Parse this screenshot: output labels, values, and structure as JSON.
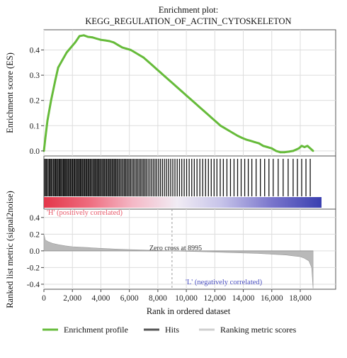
{
  "chart_data": {
    "type": "line",
    "title": "Enrichment plot:",
    "subtitle": "KEGG_REGULATION_OF_ACTIN_CYTOSKELETON",
    "xlabel": "Rank in ordered dataset",
    "xlim": [
      0,
      19000
    ],
    "x_ticks": [
      0,
      2000,
      4000,
      6000,
      8000,
      10000,
      12000,
      14000,
      16000,
      18000
    ],
    "x_tick_labels": [
      "0",
      "2,000",
      "4,000",
      "6,000",
      "8,000",
      "10,000",
      "12,000",
      "14,000",
      "16,000",
      "18,000"
    ],
    "grid": true,
    "panels": {
      "enrichment": {
        "ylabel": "Enrichment score (ES)",
        "ylim": [
          -0.02,
          0.48
        ],
        "y_ticks": [
          0.0,
          0.1,
          0.2,
          0.3,
          0.4
        ],
        "y_tick_labels": [
          "0.0",
          "0.1",
          "0.2",
          "0.3",
          "0.4"
        ],
        "series": [
          {
            "name": "Enrichment profile",
            "color": "#66bb3a",
            "x": [
              0,
              100,
              250,
              500,
              800,
              1000,
              1300,
              1600,
              1900,
              2200,
              2500,
              2800,
              3100,
              3400,
              3700,
              4000,
              4300,
              4600,
              4900,
              5200,
              5500,
              5800,
              6100,
              6400,
              6700,
              7000,
              7300,
              7600,
              7900,
              8200,
              8500,
              8800,
              9100,
              9400,
              9700,
              10000,
              10300,
              10600,
              10900,
              11200,
              11500,
              11800,
              12100,
              12400,
              12700,
              13000,
              13300,
              13600,
              13900,
              14200,
              14500,
              14800,
              15100,
              15400,
              15700,
              16000,
              16300,
              16600,
              16900,
              17200,
              17500,
              17700,
              17900,
              18100,
              18300,
              18500,
              18700,
              18900
            ],
            "y": [
              0.0,
              0.05,
              0.12,
              0.2,
              0.28,
              0.33,
              0.36,
              0.39,
              0.41,
              0.43,
              0.455,
              0.458,
              0.452,
              0.45,
              0.445,
              0.44,
              0.438,
              0.435,
              0.43,
              0.42,
              0.41,
              0.405,
              0.4,
              0.39,
              0.38,
              0.37,
              0.355,
              0.34,
              0.325,
              0.31,
              0.295,
              0.28,
              0.265,
              0.25,
              0.235,
              0.22,
              0.205,
              0.19,
              0.175,
              0.16,
              0.145,
              0.13,
              0.115,
              0.1,
              0.09,
              0.08,
              0.07,
              0.06,
              0.052,
              0.045,
              0.04,
              0.035,
              0.03,
              0.02,
              0.015,
              0.01,
              0.0,
              -0.005,
              -0.005,
              -0.003,
              0.0,
              0.005,
              0.01,
              0.02,
              0.015,
              0.02,
              0.01,
              0.0
            ]
          }
        ]
      },
      "hits": {
        "name": "Hits",
        "color": "#111111",
        "positions": [
          60,
          140,
          210,
          300,
          380,
          450,
          520,
          600,
          680,
          760,
          830,
          900,
          980,
          1060,
          1130,
          1200,
          1280,
          1360,
          1430,
          1500,
          1570,
          1650,
          1720,
          1800,
          1870,
          1950,
          2020,
          2100,
          2170,
          2250,
          2330,
          2400,
          2480,
          2550,
          2620,
          2700,
          2780,
          2850,
          2930,
          3000,
          3080,
          3150,
          3230,
          3300,
          3380,
          3460,
          3540,
          3610,
          3690,
          3770,
          3840,
          3920,
          4000,
          4080,
          4160,
          4240,
          4320,
          4400,
          4480,
          4560,
          4640,
          4720,
          4800,
          4880,
          4960,
          5040,
          5120,
          5200,
          5290,
          5380,
          5470,
          5560,
          5650,
          5740,
          5830,
          5920,
          6010,
          6100,
          6200,
          6300,
          6400,
          6500,
          6600,
          6700,
          6800,
          6900,
          7000,
          7100,
          7200,
          7320,
          7440,
          7560,
          7680,
          7800,
          7920,
          8050,
          8180,
          8320,
          8460,
          8600,
          8750,
          8900,
          9050,
          9200,
          9360,
          9520,
          9680,
          9850,
          10020,
          10200,
          10380,
          10560,
          10750,
          10950,
          11150,
          11350,
          11550,
          11750,
          11950,
          12150,
          12380,
          12600,
          12850,
          13100,
          13350,
          13600,
          13850,
          14100,
          14350,
          14600,
          14900,
          15200,
          15500,
          15800,
          16100,
          16450,
          16800,
          17150,
          17500,
          17800,
          18100,
          18400,
          18700
        ]
      },
      "ranked_metric": {
        "ylabel": "Ranked list metric (signal2noise)",
        "ylim": [
          -0.46,
          0.5
        ],
        "y_ticks": [
          -0.4,
          -0.2,
          0.0,
          0.2,
          0.4
        ],
        "y_tick_labels": [
          "-0.4",
          "-0.2",
          "0.0",
          "0.2",
          "0.4"
        ],
        "name": "Ranking metric scores",
        "color": "#b9b9b9",
        "x": [
          0,
          100,
          300,
          600,
          1000,
          1500,
          2000,
          3000,
          4000,
          5000,
          6000,
          7000,
          8000,
          8995,
          10000,
          11000,
          12000,
          13000,
          14000,
          15000,
          16000,
          17000,
          17500,
          18000,
          18300,
          18600,
          18800,
          18900
        ],
        "y": [
          0.2,
          0.13,
          0.11,
          0.09,
          0.075,
          0.06,
          0.05,
          0.04,
          0.03,
          0.022,
          0.015,
          0.01,
          0.005,
          0.0,
          -0.005,
          -0.01,
          -0.015,
          -0.02,
          -0.025,
          -0.03,
          -0.04,
          -0.05,
          -0.06,
          -0.07,
          -0.09,
          -0.12,
          -0.2,
          -0.45
        ],
        "annotations": {
          "zero_cross": "Zero cross at 8995",
          "positive": "'H' (positively correlated)",
          "negative": "'L' (negatively correlated)"
        }
      }
    },
    "legend": {
      "placement": "bottom",
      "entries": [
        "Enrichment profile",
        "Hits",
        "Ranking metric scores"
      ]
    },
    "colors": {
      "positive": "#e33a4a",
      "negative": "#3a3fb0",
      "annotation_positive": "#e8596a",
      "annotation_negative": "#4a4fc0"
    }
  }
}
